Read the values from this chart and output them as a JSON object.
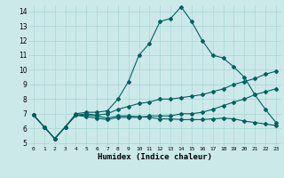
{
  "xlabel": "Humidex (Indice chaleur)",
  "xlim": [
    -0.5,
    23.5
  ],
  "ylim": [
    4.8,
    14.4
  ],
  "xticks": [
    0,
    1,
    2,
    3,
    4,
    5,
    6,
    7,
    8,
    9,
    10,
    11,
    12,
    13,
    14,
    15,
    16,
    17,
    18,
    19,
    20,
    21,
    22,
    23
  ],
  "yticks": [
    5,
    6,
    7,
    8,
    9,
    10,
    11,
    12,
    13,
    14
  ],
  "bg_color": "#cce9e9",
  "grid_color": "#aad4d4",
  "line_color": "#006060",
  "line1_y": [
    6.9,
    6.1,
    5.3,
    6.1,
    7.0,
    7.1,
    7.1,
    7.2,
    8.0,
    9.2,
    11.0,
    11.8,
    13.3,
    13.5,
    14.3,
    13.3,
    12.0,
    11.0,
    10.8,
    10.2,
    9.5,
    8.3,
    7.3,
    6.4
  ],
  "line2_y": [
    6.9,
    6.1,
    5.3,
    6.1,
    6.9,
    7.0,
    6.9,
    7.0,
    7.3,
    7.5,
    7.7,
    7.8,
    8.0,
    8.0,
    8.1,
    8.2,
    8.3,
    8.5,
    8.7,
    9.0,
    9.2,
    9.4,
    9.7,
    9.9
  ],
  "line3_y": [
    6.9,
    6.1,
    5.3,
    6.1,
    6.9,
    6.9,
    6.85,
    6.7,
    6.85,
    6.85,
    6.8,
    6.75,
    6.65,
    6.65,
    6.6,
    6.6,
    6.6,
    6.65,
    6.7,
    6.65,
    6.5,
    6.4,
    6.3,
    6.2
  ],
  "line4_y": [
    6.9,
    6.1,
    5.3,
    6.1,
    6.9,
    6.8,
    6.7,
    6.6,
    6.75,
    6.75,
    6.75,
    6.85,
    6.85,
    6.85,
    7.0,
    7.0,
    7.1,
    7.3,
    7.55,
    7.8,
    8.0,
    8.3,
    8.5,
    8.7
  ]
}
